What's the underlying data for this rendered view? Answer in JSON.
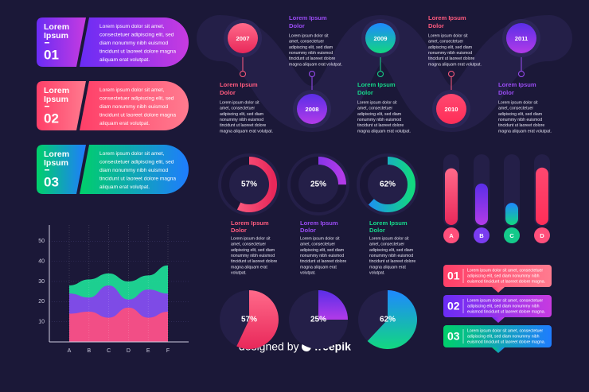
{
  "cards": [
    {
      "title": [
        "Lorem",
        "Ipsum"
      ],
      "number": "01",
      "lines": [
        "Lorem ipsum dolor sit amet,",
        "consectetuer adipiscing elit, sed",
        "diam nonummy nibh euismod",
        "tincidunt ut laoreet dolore magna",
        "aliquam erat volutpat."
      ]
    },
    {
      "title": [
        "Lorem",
        "Ipsum"
      ],
      "number": "02",
      "lines": [
        "Lorem ipsum dolor sit amet,",
        "consectetuer adipiscing elit, sed",
        "diam nonummy nibh euismod",
        "tincidunt ut laoreet dolore magna",
        "aliquam erat volutpat."
      ]
    },
    {
      "title": [
        "Lorem",
        "Ipsum"
      ],
      "number": "03",
      "lines": [
        "Lorem ipsum dolor sit amet,",
        "consectetuer adipiscing elit, sed",
        "diam nonummy nibh euismod",
        "tincidunt ut laoreet dolore magna",
        "aliquam erat volutpat."
      ]
    }
  ],
  "timeline": [
    {
      "year": "2007",
      "label": [
        "Lorem Ipsum",
        "Dolor"
      ],
      "lines": [
        "Lorem ipsum dolor sit",
        "amet, consectetuer",
        "adipiscing elit, sed diam",
        "nonummy nibh euismod",
        "tincidunt ut laoreet dolore",
        "magna aliquam erat volutpat."
      ]
    },
    {
      "year": "2008",
      "label": [
        "Lorem Ipsum",
        "Dolor"
      ],
      "lines": [
        "Lorem ipsum dolor sit",
        "amet, consectetuer",
        "adipiscing elit, sed diam",
        "nonummy nibh euismod",
        "tincidunt ut laoreet dolore",
        "magna aliquam erat volutpat."
      ]
    },
    {
      "year": "2009",
      "label": [
        "Lorem Ipsum",
        "Dolor"
      ],
      "lines": [
        "Lorem ipsum dolor sit",
        "amet, consectetuer",
        "adipiscing elit, sed diam",
        "nonummy nibh euismod",
        "tincidunt ut laoreet dolore",
        "magna aliquam erat volutpat."
      ]
    },
    {
      "year": "2010",
      "label": [
        "Lorem Ipsum",
        "Dolor"
      ],
      "lines": [
        "Lorem ipsum dolor sit",
        "amet, consectetuer",
        "adipiscing elit, sed diam",
        "nonummy nibh euismod",
        "tincidunt ut laoreet dolore",
        "magna aliquam erat volutpat."
      ]
    },
    {
      "year": "2011",
      "label": [
        "Lorem Ipsum",
        "Dolor"
      ],
      "lines": [
        "Lorem ipsum dolor sit",
        "amet, consectetuer",
        "adipiscing elit, sed diam",
        "nonummy nibh euismod",
        "tincidunt ut laoreet dolore",
        "magna aliquam erat volutpat."
      ]
    }
  ],
  "donuts": {
    "values": [
      57,
      25,
      62
    ],
    "value_labels": [
      "57%",
      "25%",
      "62%"
    ],
    "items": [
      {
        "label": [
          "Lorem Ipsum",
          "Dolor"
        ],
        "lines": [
          "Lorem ipsum dolor sit",
          "amet, consectetuer",
          "adipiscing elit, sed diam",
          "nonummy nibh euismod",
          "tincidunt ut laoreet dolore",
          "magna aliquam erat",
          "volutpat."
        ]
      },
      {
        "label": [
          "Lorem Ipsum",
          "Dolor"
        ],
        "lines": [
          "Lorem ipsum dolor sit",
          "amet, consectetuer",
          "adipiscing elit, sed diam",
          "nonummy nibh euismod",
          "tincidunt ut laoreet dolore",
          "magna aliquam erat",
          "volutpat."
        ]
      },
      {
        "label": [
          "Lorem Ipsum",
          "Dolor"
        ],
        "lines": [
          "Lorem ipsum dolor sit",
          "amet, consectetuer",
          "adipiscing elit, sed diam",
          "nonummy nibh euismod",
          "tincidunt ut laoreet dolore",
          "magna aliquam erat",
          "volutpat."
        ]
      }
    ]
  },
  "pies": {
    "values": [
      57,
      25,
      62
    ],
    "value_labels": [
      "57%",
      "25%",
      "62%"
    ]
  },
  "bars": {
    "labels": [
      "A",
      "B",
      "C",
      "D"
    ],
    "values": [
      82,
      60,
      32,
      83
    ],
    "ylim": [
      0,
      100
    ]
  },
  "area_chart": {
    "type": "area",
    "categories": [
      "A",
      "B",
      "C",
      "D",
      "E",
      "F"
    ],
    "ylim": [
      0,
      58
    ],
    "yticks": [
      10,
      20,
      30,
      40,
      50
    ],
    "grid": true,
    "series": [
      {
        "color": "#1ee39a",
        "values": [
          28,
          31,
          34,
          30,
          33,
          38
        ]
      },
      {
        "color": "#8a3cf0",
        "values": [
          24,
          22,
          28,
          21,
          26,
          24
        ]
      },
      {
        "color": "#ff4f7b",
        "values": [
          14,
          15,
          12,
          17,
          12,
          15
        ]
      }
    ]
  },
  "list": [
    {
      "number": "01",
      "lines": [
        "Lorem ipsum dolor sit amet, consectetuer",
        "adipiscing elit, sed diam nonummy nibh",
        "euismod tincidunt ut laoreet dolore magna."
      ]
    },
    {
      "number": "02",
      "lines": [
        "Lorem ipsum dolor sit amet, consectetuer",
        "adipiscing elit, sed diam nonummy nibh",
        "euismod tincidunt ut laoreet dolore magna."
      ]
    },
    {
      "number": "03",
      "lines": [
        "Lorem ipsum dolor sit amet, consectetuer",
        "adipiscing elit, sed diam nonummy nibh",
        "euismod tincidunt ut laoreet dolore magna."
      ]
    }
  ],
  "footer": {
    "text": "designed by",
    "brand": "freepik"
  }
}
